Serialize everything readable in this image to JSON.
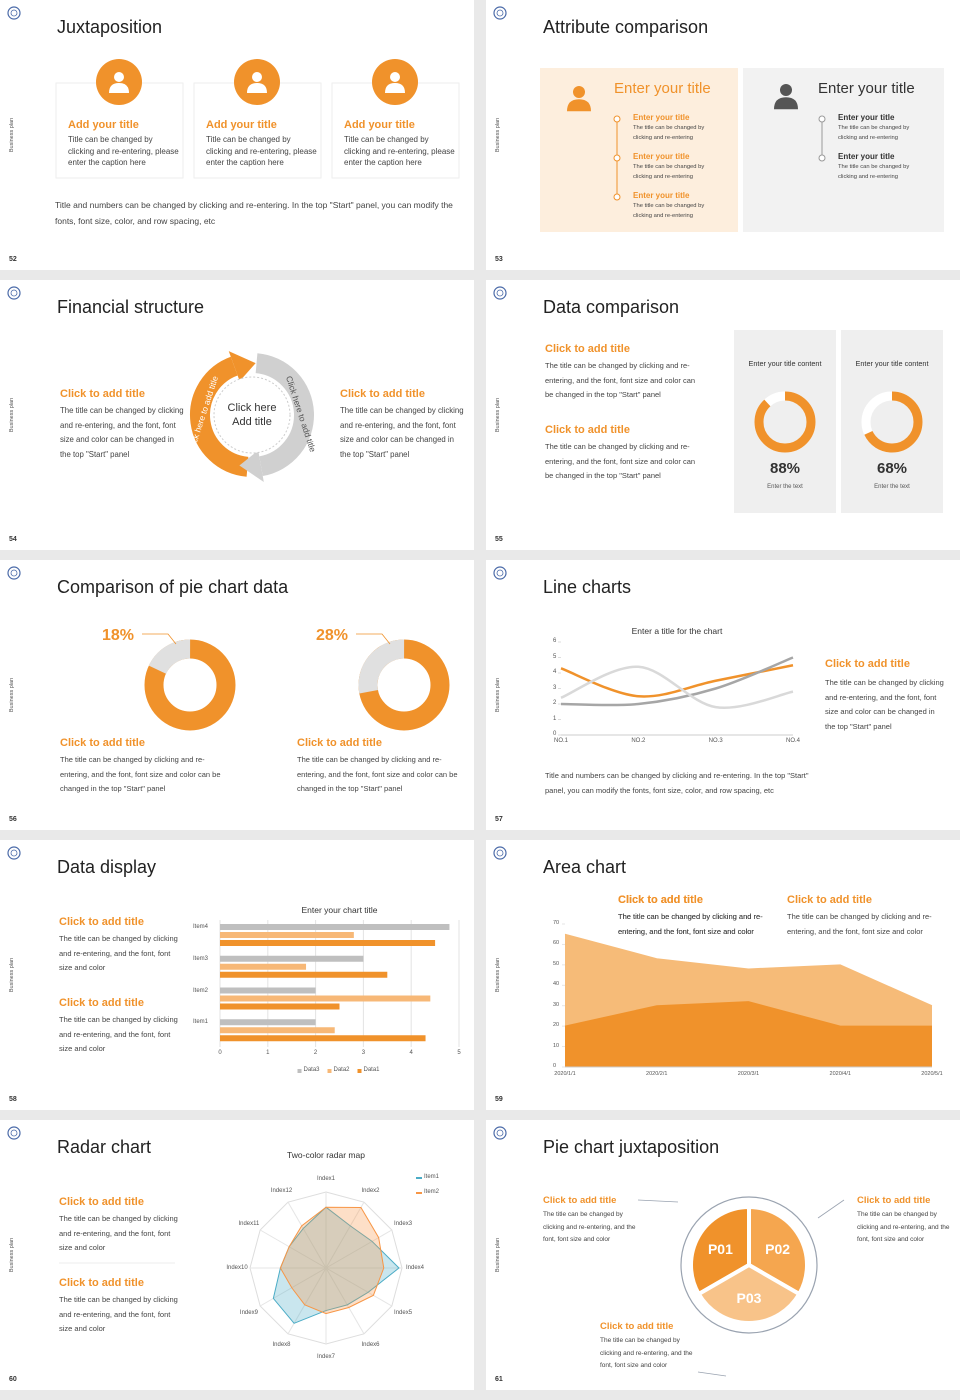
{
  "slides": [
    {
      "number": "52",
      "side": "Business plan",
      "title": "Juxtaposition",
      "cards": [
        {
          "title": "Add your title",
          "text": "Title can be changed by clicking and re-entering, please enter the caption here"
        },
        {
          "title": "Add your title",
          "text": "Title can be changed by clicking and re-entering, please enter the caption here"
        },
        {
          "title": "Add your title",
          "text": "Title can be changed by clicking and re-entering, please enter the caption here"
        }
      ],
      "note": "Title and numbers can be changed by clicking and re-entering. In the top \"Start\" panel, you can modify the fonts, font size, color, and row spacing, etc"
    },
    {
      "number": "53",
      "side": "Business plan",
      "title": "Attribute comparison",
      "left": {
        "heading": "Enter your title",
        "items": [
          {
            "title": "Enter your title",
            "text": "The title can be changed by clicking and re-entering"
          },
          {
            "title": "Enter your title",
            "text": "The title can be changed by clicking and re-entering"
          },
          {
            "title": "Enter your title",
            "text": "The title can be changed by clicking and re-entering"
          }
        ]
      },
      "right": {
        "heading": "Enter your title",
        "items": [
          {
            "title": "Enter your title",
            "text": "The title can be changed by clicking and re-entering"
          },
          {
            "title": "Enter your title",
            "text": "The title can be changed by clicking and re-entering"
          }
        ]
      }
    },
    {
      "number": "54",
      "side": "Business plan",
      "title": "Financial structure",
      "left": {
        "title": "Click to add title",
        "text": "The title can be changed by clicking and re-entering, and the font, font size and color can be changed in the top \"Start\" panel"
      },
      "right": {
        "title": "Click to add title",
        "text": "The title can be changed by clicking and re-entering, and the font, font size and color can be changed in the top \"Start\" panel"
      },
      "center": [
        "Click here",
        "Add title"
      ],
      "arc_labels": [
        "Click here to add title",
        "Click here to add title"
      ]
    },
    {
      "number": "55",
      "side": "Business plan",
      "title": "Data comparison",
      "blocks": [
        {
          "title": "Click to add title",
          "text": "The title can be changed by clicking and re-entering, and the font, font size and color can be changed in the top \"Start\" panel"
        },
        {
          "title": "Click to add title",
          "text": "The title can be changed by clicking and re-entering, and the font, font size and color can be changed in the top \"Start\" panel"
        }
      ],
      "cards": [
        {
          "heading": "Enter your title content",
          "value": 88,
          "value_label": "88%",
          "caption": "Enter the text"
        },
        {
          "heading": "Enter your title content",
          "value": 68,
          "value_label": "68%",
          "caption": "Enter the text"
        }
      ]
    },
    {
      "number": "56",
      "side": "Business plan",
      "title": "Comparison of pie chart data",
      "pies": [
        {
          "value": 18,
          "value_label": "18%",
          "title": "Click to add title",
          "text": "The title can be changed by clicking and re-entering, and the font, font size and color can be changed in the top \"Start\" panel"
        },
        {
          "value": 28,
          "value_label": "28%",
          "title": "Click to add title",
          "text": "The title can be changed by clicking and re-entering, and the font, font size and color can be changed in the top \"Start\" panel"
        }
      ]
    },
    {
      "number": "57",
      "side": "Business plan",
      "title": "Line charts",
      "chart": {
        "type": "line",
        "title": "Enter a title for the chart",
        "categories": [
          "NO.1",
          "NO.2",
          "NO.3",
          "NO.4"
        ],
        "ylim": [
          0,
          6
        ],
        "yticks": [
          0,
          1,
          2,
          3,
          4,
          5,
          6
        ],
        "series": [
          {
            "color": "#f0922b",
            "values": [
              4.3,
              2.5,
              3.5,
              4.5
            ]
          },
          {
            "color": "#a6a6a6",
            "values": [
              2,
              2,
              3,
              5
            ]
          },
          {
            "color": "#d9d9d9",
            "values": [
              2.4,
              4.4,
              1.8,
              2.8
            ]
          }
        ]
      },
      "block": {
        "title": "Click to add title",
        "text": "The title can be changed by clicking and re-entering, and the font, font size and color can be changed in the top \"Start\" panel"
      },
      "note": "Title and numbers can be changed by clicking and re-entering. In the top \"Start\" panel, you can modify the fonts, font size, color, and row spacing, etc"
    },
    {
      "number": "58",
      "side": "Business plan",
      "title": "Data display",
      "blocks": [
        {
          "title": "Click to add title",
          "text": "The title can be changed by clicking and re-entering, and the font, font size and color"
        },
        {
          "title": "Click to add title",
          "text": "The title can be changed by clicking and re-entering, and the font, font size and color"
        }
      ],
      "chart": {
        "type": "bar",
        "orientation": "horizontal",
        "title": "Enter your chart title",
        "categories": [
          "Item1",
          "Item2",
          "Item3",
          "Item4"
        ],
        "xlim": [
          0,
          5
        ],
        "xticks": [
          0,
          1,
          2,
          3,
          4,
          5
        ],
        "grid": true,
        "series": [
          {
            "name": "Data3",
            "color": "#bfbfbf",
            "values": [
              2,
              2,
              3,
              4.8
            ]
          },
          {
            "name": "Data2",
            "color": "#f7b877",
            "values": [
              2.4,
              4.4,
              1.8,
              2.8
            ]
          },
          {
            "name": "Data1",
            "color": "#f0922b",
            "values": [
              4.3,
              2.5,
              3.5,
              4.5
            ]
          }
        ]
      }
    },
    {
      "number": "59",
      "side": "Business plan",
      "title": "Area chart",
      "blocks": [
        {
          "title": "Click to add title",
          "text": "The title can be changed by clicking and re-entering, and the font, font size and color"
        },
        {
          "title": "Click to add title",
          "text": "The title can be changed by clicking and re-entering, and the font, font size and color"
        }
      ],
      "chart": {
        "type": "area",
        "categories": [
          "2020/1/1",
          "2020/2/1",
          "2020/3/1",
          "2020/4/1",
          "2020/5/1"
        ],
        "ylim": [
          0,
          70
        ],
        "yticks": [
          0,
          10,
          20,
          30,
          40,
          50,
          60,
          70
        ],
        "series": [
          {
            "color": "#f6bb78",
            "values": [
              65,
              53,
              48,
              50,
              30
            ]
          },
          {
            "color": "#f0922b",
            "values": [
              20,
              30,
              32,
              20,
              20
            ]
          }
        ]
      }
    },
    {
      "number": "60",
      "side": "Business plan",
      "title": "Radar chart",
      "blocks": [
        {
          "title": "Click to add title",
          "text": "The title can be changed by clicking and re-entering, and the font, font size and color"
        },
        {
          "title": "Click to add title",
          "text": "The title can be changed by clicking and re-entering, and the font, font size and color"
        }
      ],
      "chart": {
        "type": "radar",
        "title": "Two-color radar map",
        "categories": [
          "Index1",
          "Index2",
          "Index3",
          "Index4",
          "Index5",
          "Index6",
          "Index7",
          "Index8",
          "Index9",
          "Index10",
          "Index11",
          "Index12"
        ],
        "rlim": [
          0,
          5
        ],
        "series": [
          {
            "name": "Item1",
            "color": "#4bacc6",
            "values": [
              4,
              3.2,
              3.5,
              4.8,
              3.2,
              2.8,
              2.8,
              4.2,
              4,
              3,
              2.8,
              3
            ]
          },
          {
            "name": "Item2",
            "color": "#f79646",
            "values": [
              4,
              4.6,
              4,
              3.8,
              3.6,
              3,
              3,
              2.8,
              2.6,
              3,
              2.8,
              3.2
            ]
          }
        ]
      }
    },
    {
      "number": "61",
      "side": "Business plan",
      "title": "Pie chart juxtaposition",
      "segments": [
        "P01",
        "P02",
        "P03"
      ],
      "blocks": [
        {
          "title": "Click to add title",
          "text": "The title can be changed by clicking and re-entering, and the font, font size and color"
        },
        {
          "title": "Click to add title",
          "text": "The title can be changed by clicking and re-entering, and the font, font size and color"
        },
        {
          "title": "Click to add title",
          "text": "The title can be changed by clicking and re-entering, and the font, font size and color"
        }
      ]
    }
  ]
}
